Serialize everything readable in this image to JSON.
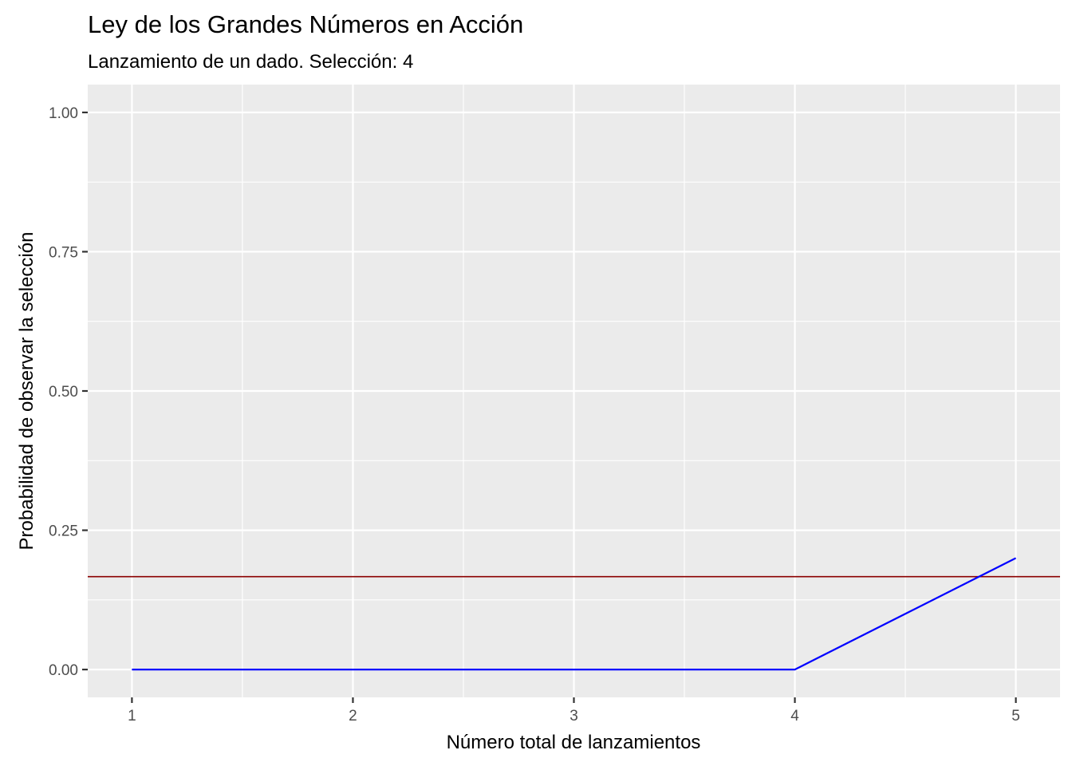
{
  "chart_data": {
    "type": "line",
    "title": "Ley de los Grandes Números en Acción",
    "subtitle": "Lanzamiento de un dado. Selección:  4",
    "xlabel": "Número total de lanzamientos",
    "ylabel": "Probabilidad de observar la selección",
    "xlim": [
      0.8,
      5.2
    ],
    "ylim": [
      -0.05,
      1.05
    ],
    "x_ticks": [
      1,
      2,
      3,
      4,
      5
    ],
    "x_tick_labels": [
      "1",
      "2",
      "3",
      "4",
      "5"
    ],
    "y_ticks": [
      0,
      0.25,
      0.5,
      0.75,
      1
    ],
    "y_tick_labels": [
      "0.00",
      "0.25",
      "0.50",
      "0.75",
      "1.00"
    ],
    "grid": true,
    "series": [
      {
        "color": "#0000ff",
        "x": [
          1,
          2,
          3,
          4,
          5
        ],
        "values": [
          0,
          0,
          0,
          0,
          0.2
        ]
      }
    ],
    "reference_line": {
      "y": 0.1667,
      "color": "#8b0000"
    },
    "colors": {
      "panel_background": "#ebebeb",
      "grid": "#ffffff",
      "axis_text": "#4d4d4d"
    }
  }
}
